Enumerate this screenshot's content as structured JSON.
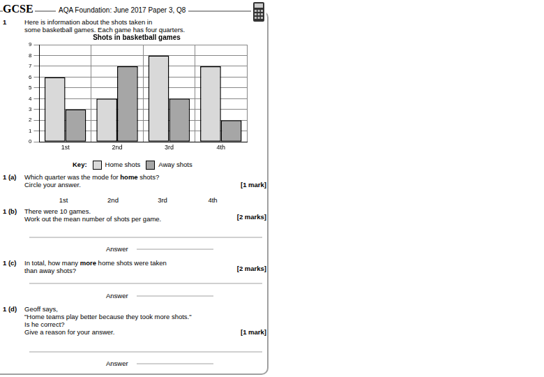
{
  "header": {
    "exam": "GCSE",
    "source": "AQA Foundation: June 2017 Paper 3, Q8"
  },
  "question": {
    "number": "1",
    "intro": [
      "Here is information about the shots taken in",
      "some basketball games. Each game has four quarters."
    ],
    "key_label": "Key:"
  },
  "chart_data": {
    "type": "bar",
    "title": "Shots in basketball games",
    "categories": [
      "1st",
      "2nd",
      "3rd",
      "4th"
    ],
    "series": [
      {
        "name": "Home shots",
        "color": "#d9d9d9",
        "values": [
          6,
          4,
          8,
          7
        ]
      },
      {
        "name": "Away shots",
        "color": "#a6a6a6",
        "values": [
          3,
          7,
          4,
          2
        ]
      }
    ],
    "ylim": [
      0,
      9
    ],
    "yticks": [
      0,
      1,
      2,
      3,
      4,
      5,
      6,
      7,
      8,
      9
    ],
    "grid": true,
    "legend": "bottom"
  },
  "parts": [
    {
      "label": "1 (a)",
      "marks": "[1 mark]",
      "lines": [
        [
          {
            "text": "Which quarter was the mode for "
          },
          {
            "text": "home",
            "bold": true
          },
          {
            "text": " shots?"
          }
        ],
        "Circle your answer."
      ],
      "options": [
        "1st",
        "2nd",
        "3rd",
        "4th"
      ]
    },
    {
      "label": "1 (b)",
      "marks": "[2 marks]",
      "lines": [
        "There were 10 games.",
        "Work out the mean number of shots per game."
      ],
      "answer": "Answer"
    },
    {
      "label": "1 (c)",
      "marks": "[2 marks]",
      "lines": [
        [
          {
            "text": "In total, how many "
          },
          {
            "text": "more",
            "bold": true
          },
          {
            "text": " home shots were taken"
          }
        ],
        "than away shots?"
      ],
      "answer": "Answer"
    },
    {
      "label": "1 (d)",
      "marks": "[1 mark]",
      "lines": [
        "Geoff says,",
        "\"Home teams play better because they took more shots.\"",
        "Is he correct?",
        "Give a reason for your answer."
      ],
      "answer": "Answer"
    }
  ]
}
